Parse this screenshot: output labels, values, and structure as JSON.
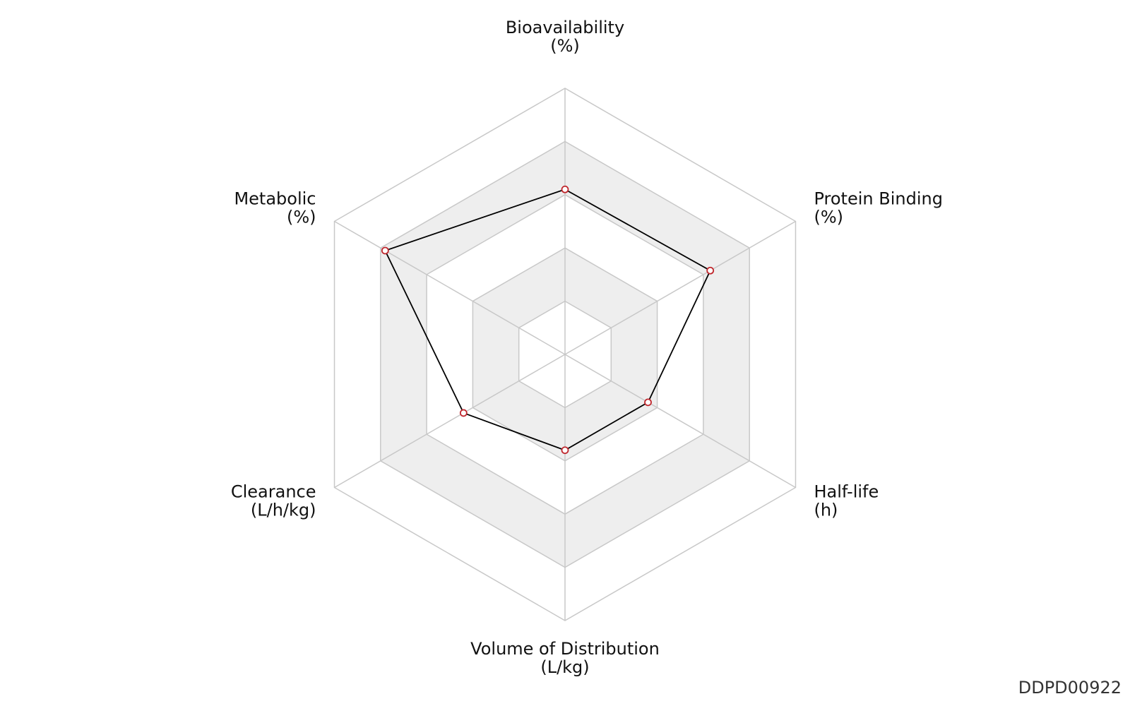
{
  "chart_data": {
    "type": "radar",
    "axes": [
      {
        "name": "Bioavailability",
        "unit": "(%)"
      },
      {
        "name": "Protein Binding",
        "unit": "(%)"
      },
      {
        "name": "Half-life",
        "unit": "(h)"
      },
      {
        "name": "Volume of Distribution",
        "unit": "(L/kg)"
      },
      {
        "name": "Clearance",
        "unit": "(L/h/kg)"
      },
      {
        "name": "Metabolic",
        "unit": "(%)"
      }
    ],
    "levels": 5,
    "range": [
      0,
      1
    ],
    "series": [
      {
        "values": [
          0.62,
          0.63,
          0.36,
          0.36,
          0.44,
          0.78
        ]
      }
    ],
    "band_colors": [
      "#ffffff",
      "#eeeeee"
    ],
    "grid_color": "#c8c8c8",
    "line_color": "#000000",
    "point_color": "#c0272d"
  },
  "chart_id": "DDPD00922"
}
